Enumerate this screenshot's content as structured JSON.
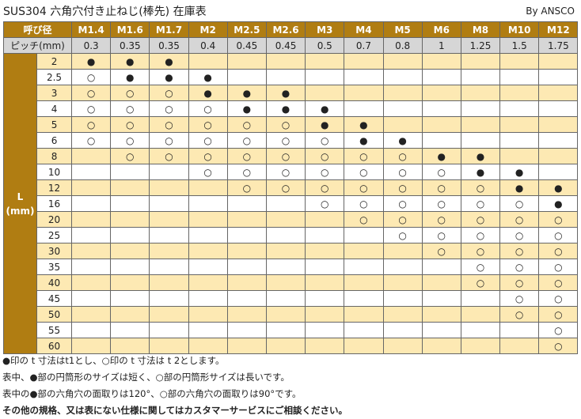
{
  "header": {
    "title": "SUS304 六角穴付き止ねじ(棒先) 在庫表",
    "brand": "By ANSCO"
  },
  "table": {
    "corner_label": "呼び径",
    "pitch_label": "ピッチ(mm)",
    "l_label": "L",
    "l_unit": "(mm)",
    "sizes": [
      "M1.4",
      "M1.6",
      "M1.7",
      "M2",
      "M2.5",
      "M2.6",
      "M3",
      "M4",
      "M5",
      "M6",
      "M8",
      "M10",
      "M12"
    ],
    "pitches": [
      "0.3",
      "0.35",
      "0.35",
      "0.4",
      "0.45",
      "0.45",
      "0.5",
      "0.7",
      "0.8",
      "1",
      "1.25",
      "1.5",
      "1.75"
    ],
    "rows": [
      {
        "length": "2",
        "marks": [
          "●",
          "●",
          "●",
          "",
          "",
          "",
          "",
          "",
          "",
          "",
          "",
          "",
          ""
        ]
      },
      {
        "length": "2.5",
        "marks": [
          "○",
          "●",
          "●",
          "●",
          "",
          "",
          "",
          "",
          "",
          "",
          "",
          "",
          ""
        ]
      },
      {
        "length": "3",
        "marks": [
          "○",
          "○",
          "○",
          "●",
          "●",
          "●",
          "",
          "",
          "",
          "",
          "",
          "",
          ""
        ]
      },
      {
        "length": "4",
        "marks": [
          "○",
          "○",
          "○",
          "○",
          "●",
          "●",
          "●",
          "",
          "",
          "",
          "",
          "",
          ""
        ]
      },
      {
        "length": "5",
        "marks": [
          "○",
          "○",
          "○",
          "○",
          "○",
          "○",
          "●",
          "●",
          "",
          "",
          "",
          "",
          ""
        ]
      },
      {
        "length": "6",
        "marks": [
          "○",
          "○",
          "○",
          "○",
          "○",
          "○",
          "○",
          "●",
          "●",
          "",
          "",
          "",
          ""
        ]
      },
      {
        "length": "8",
        "marks": [
          "",
          "○",
          "○",
          "○",
          "○",
          "○",
          "○",
          "○",
          "○",
          "●",
          "●",
          "",
          ""
        ]
      },
      {
        "length": "10",
        "marks": [
          "",
          "",
          "",
          "○",
          "○",
          "○",
          "○",
          "○",
          "○",
          "○",
          "●",
          "●",
          ""
        ]
      },
      {
        "length": "12",
        "marks": [
          "",
          "",
          "",
          "",
          "○",
          "○",
          "○",
          "○",
          "○",
          "○",
          "○",
          "●",
          "●"
        ]
      },
      {
        "length": "16",
        "marks": [
          "",
          "",
          "",
          "",
          "",
          "",
          "○",
          "○",
          "○",
          "○",
          "○",
          "○",
          "●"
        ]
      },
      {
        "length": "20",
        "marks": [
          "",
          "",
          "",
          "",
          "",
          "",
          "",
          "○",
          "○",
          "○",
          "○",
          "○",
          "○"
        ]
      },
      {
        "length": "25",
        "marks": [
          "",
          "",
          "",
          "",
          "",
          "",
          "",
          "",
          "○",
          "○",
          "○",
          "○",
          "○"
        ]
      },
      {
        "length": "30",
        "marks": [
          "",
          "",
          "",
          "",
          "",
          "",
          "",
          "",
          "",
          "○",
          "○",
          "○",
          "○"
        ]
      },
      {
        "length": "35",
        "marks": [
          "",
          "",
          "",
          "",
          "",
          "",
          "",
          "",
          "",
          "",
          "○",
          "○",
          "○"
        ]
      },
      {
        "length": "40",
        "marks": [
          "",
          "",
          "",
          "",
          "",
          "",
          "",
          "",
          "",
          "",
          "○",
          "○",
          "○"
        ]
      },
      {
        "length": "45",
        "marks": [
          "",
          "",
          "",
          "",
          "",
          "",
          "",
          "",
          "",
          "",
          "",
          "○",
          "○"
        ]
      },
      {
        "length": "50",
        "marks": [
          "",
          "",
          "",
          "",
          "",
          "",
          "",
          "",
          "",
          "",
          "",
          "○",
          "○"
        ]
      },
      {
        "length": "55",
        "marks": [
          "",
          "",
          "",
          "",
          "",
          "",
          "",
          "",
          "",
          "",
          "",
          "",
          "○"
        ]
      },
      {
        "length": "60",
        "marks": [
          "",
          "",
          "",
          "",
          "",
          "",
          "",
          "",
          "",
          "",
          "",
          "",
          "○"
        ]
      }
    ]
  },
  "notes": [
    "●印の t 寸法はt1とし、○印の t 寸法は t 2とします。",
    "表中、●部の円筒形のサイズは短く、○部の円筒形サイズは長いです。",
    "表中の●部の六角穴の面取りは120°、○部の六角穴の面取りは90°です。",
    "その他の規格、又は表にない仕様に関してはカスタマーサービスにご相談ください。"
  ],
  "colors": {
    "header_brown": "#b07d12",
    "row_cream": "#fde9b3",
    "pitch_gray": "#d6d6d6"
  }
}
